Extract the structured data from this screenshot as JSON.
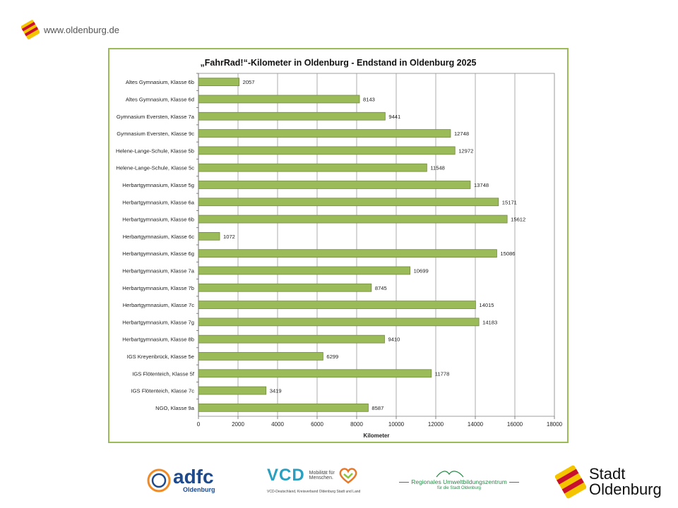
{
  "header": {
    "site_url": "www.oldenburg.de"
  },
  "chart_data": {
    "type": "bar",
    "orientation": "horizontal",
    "title": "„FahrRad!“-Kilometer in Oldenburg - Endstand in Oldenburg 2025",
    "xlabel": "Kilometer",
    "ylabel": "",
    "xlim": [
      0,
      18000
    ],
    "x_ticks": [
      0,
      2000,
      4000,
      6000,
      8000,
      10000,
      12000,
      14000,
      16000,
      18000
    ],
    "grid": "vertical",
    "bar_color": "#9bbb59",
    "categories": [
      "Altes Gymnasium, Klasse 6b",
      "Altes Gymnasium, Klasse 6d",
      "Gymnasium Eversten, Klasse 7a",
      "Gymnasium Eversten, Klasse 9c",
      "Helene-Lange-Schule, Klasse 5b",
      "Helene-Lange-Schule, Klasse 5c",
      "Herbartgymnasium, Klasse 5g",
      "Herbartgymnasium, Klasse 6a",
      "Herbartgymnasium, Klasse 6b",
      "Herbartgymnasium, Klasse 6c",
      "Herbartgymnasium, Klasse 6g",
      "Herbartgymnasium, Klasse 7a",
      "Herbartgymnasium, Klasse 7b",
      "Herbartgymnasium, Klasse 7c",
      "Herbartgymnasium, Klasse 7g",
      "Herbartgymnasium, Klasse 8b",
      "IGS Kreyenbrück, Klasse 5e",
      "IGS Flötenteich, Klasse 5f",
      "IGS Flötenteich, Klasse 7c",
      "NGO, Klasse 9a"
    ],
    "values": [
      2057,
      8143,
      9441,
      12748,
      12972,
      11548,
      13748,
      15171,
      15612,
      1072,
      15086,
      10699,
      8745,
      14015,
      14183,
      9410,
      6299,
      11778,
      3419,
      8587
    ]
  },
  "footer": {
    "adfc": {
      "name": "adfc",
      "sub": "Oldenburg",
      "color": "#1e4a8c",
      "accent": "#f08a24"
    },
    "vcd": {
      "name": "VCD",
      "tagline_1": "Mobilität für",
      "tagline_2": "Menschen.",
      "sub": "VCD-Deutschland, Kreisverband Oldenburg Stadt und Land",
      "color": "#2a9fbf"
    },
    "ruz": {
      "name": "Regionales Umweltbildungszentrum",
      "sub": "für die Stadt Oldenburg",
      "color": "#2a8a4a"
    },
    "stadt": {
      "line1": "Stadt",
      "line2": "Oldenburg"
    }
  }
}
